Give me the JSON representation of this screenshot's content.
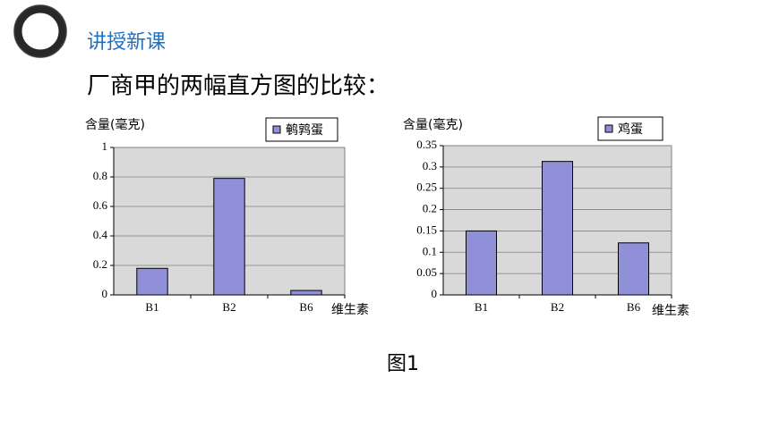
{
  "section": "讲授新课",
  "heading": "厂商甲的两幅直方图的比较：",
  "caption": "图1",
  "chart_data": [
    {
      "type": "bar",
      "y_label": "含量(毫克)",
      "x_label": "维生素",
      "categories": [
        "B1",
        "B2",
        "B6"
      ],
      "series": [
        {
          "name": "鹌鹑蛋",
          "color": "#9090d8",
          "values": [
            0.18,
            0.79,
            0.03
          ]
        }
      ],
      "ylim": [
        0,
        1
      ],
      "yticks": [
        0,
        0.2,
        0.4,
        0.6,
        0.8,
        1
      ],
      "grid": true
    },
    {
      "type": "bar",
      "y_label": "含量(毫克)",
      "x_label": "维生素",
      "categories": [
        "B1",
        "B2",
        "B6"
      ],
      "series": [
        {
          "name": "鸡蛋",
          "color": "#9090d8",
          "values": [
            0.15,
            0.313,
            0.122
          ]
        }
      ],
      "ylim": [
        0,
        0.35
      ],
      "yticks": [
        0,
        0.05,
        0.1,
        0.15,
        0.2,
        0.25,
        0.3,
        0.35
      ],
      "grid": true
    }
  ]
}
